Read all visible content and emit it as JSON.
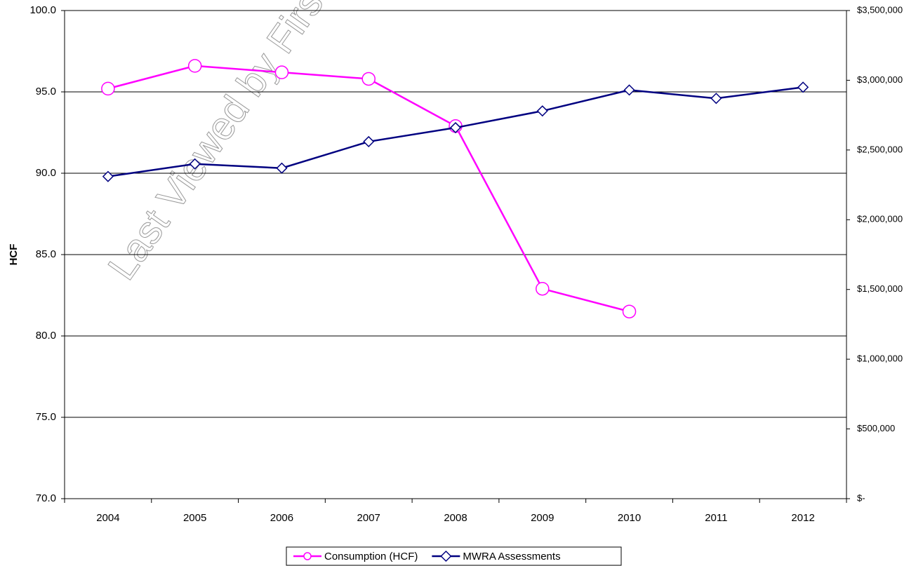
{
  "chart_data": {
    "type": "line",
    "watermark": "Last Viewed by First Circ",
    "y_label": "HCF",
    "categories": [
      "2004",
      "2005",
      "2006",
      "2007",
      "2008",
      "2009",
      "2010",
      "2011",
      "2012"
    ],
    "series": [
      {
        "name": "Consumption (HCF)",
        "color": "#ff00ff",
        "marker": "circle",
        "values": [
          95.2,
          96.6,
          96.2,
          95.8,
          92.9,
          82.9,
          81.5,
          null,
          null
        ]
      },
      {
        "name": "MWRA Assessments",
        "color": "#000080",
        "marker": "diamond",
        "axis": "y2",
        "values": [
          2310000,
          2400000,
          2370000,
          2560000,
          2660000,
          2780000,
          2930000,
          2870000,
          2950000
        ]
      }
    ],
    "ylim": [
      70,
      100
    ],
    "yticks": [
      {
        "value": 70,
        "label": "70.0"
      },
      {
        "value": 75,
        "label": "75.0"
      },
      {
        "value": 80,
        "label": "80.0"
      },
      {
        "value": 85,
        "label": "85.0"
      },
      {
        "value": 90,
        "label": "90.0"
      },
      {
        "value": 95,
        "label": "95.0"
      },
      {
        "value": 100,
        "label": "100.0"
      }
    ],
    "y2lim": [
      0,
      3500000
    ],
    "y2ticks": [
      {
        "value": 0,
        "label": "$-"
      },
      {
        "value": 500000,
        "label": "$500,000"
      },
      {
        "value": 1000000,
        "label": "$1,000,000"
      },
      {
        "value": 1500000,
        "label": "$1,500,000"
      },
      {
        "value": 2000000,
        "label": "$2,000,000"
      },
      {
        "value": 2500000,
        "label": "$2,500,000"
      },
      {
        "value": 3000000,
        "label": "$3,000,000"
      },
      {
        "value": 3500000,
        "label": "$3,500,000"
      }
    ],
    "grid": true,
    "legend": "bottom"
  }
}
